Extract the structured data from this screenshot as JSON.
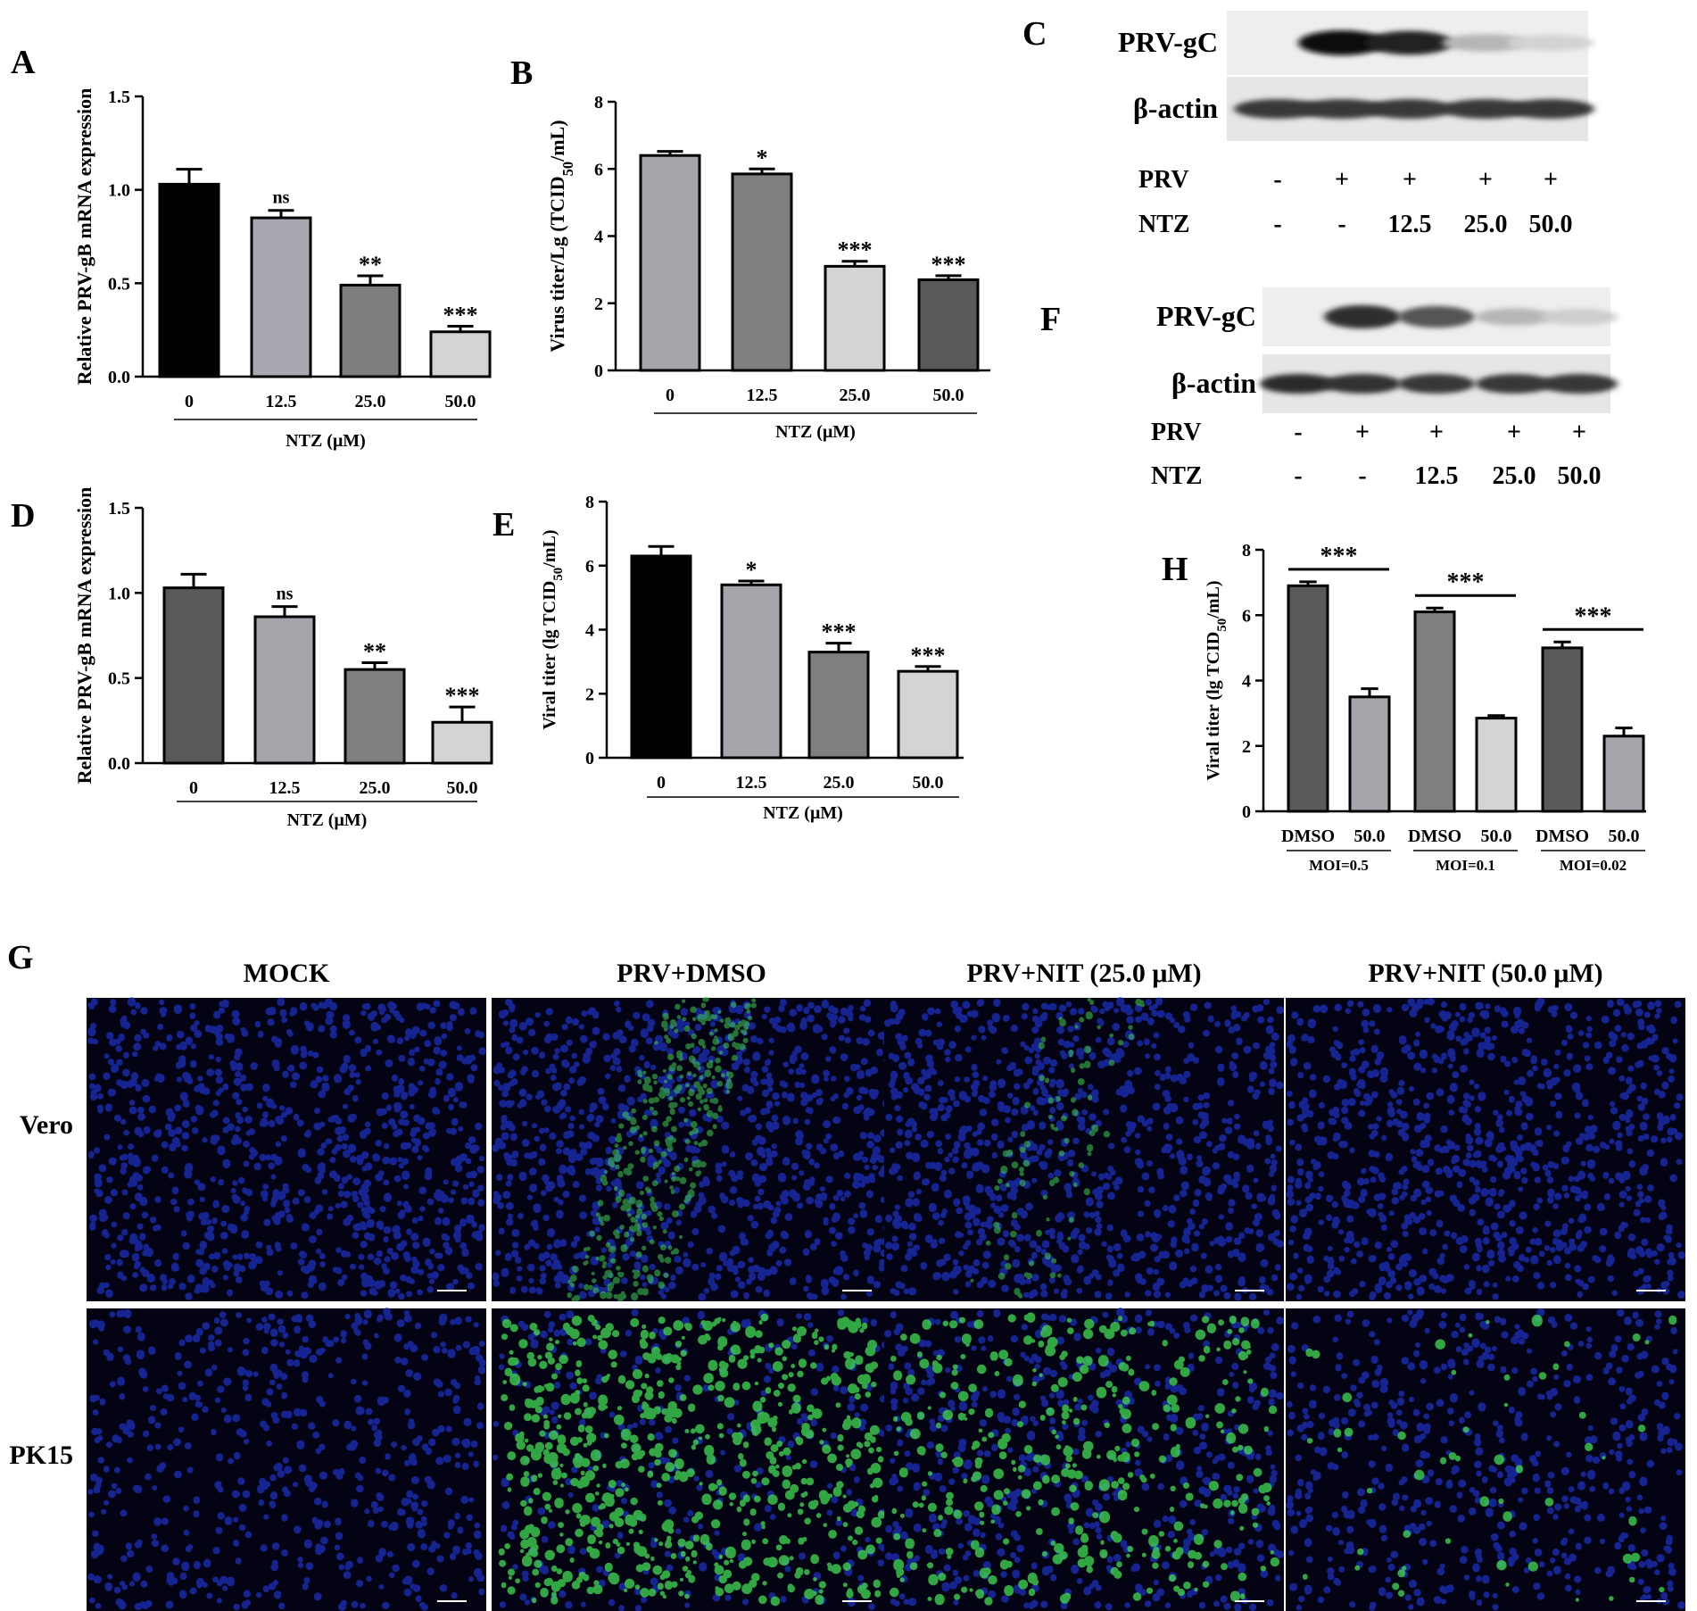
{
  "panel_letters": {
    "A": "A",
    "B": "B",
    "C": "C",
    "D": "D",
    "E": "E",
    "F": "F",
    "G": "G",
    "H": "H"
  },
  "chart_data": [
    {
      "id": "A",
      "type": "bar",
      "categories": [
        "0",
        "12.5",
        "25.0",
        "50.0"
      ],
      "values": [
        1.03,
        0.85,
        0.49,
        0.24
      ],
      "errors": [
        0.08,
        0.04,
        0.05,
        0.03
      ],
      "significance": [
        "",
        "ns",
        "**",
        "***"
      ],
      "colors": [
        "#000000",
        "#a8a8b0",
        "#7e7e7e",
        "#d4d4d4"
      ],
      "xlabel": "NTZ (μM)",
      "ylabel": "Relative PRV-gB mRNA expression",
      "ylim": [
        0,
        1.5
      ],
      "yticks": [
        "0.0",
        "0.5",
        "1.0",
        "1.5"
      ]
    },
    {
      "id": "B",
      "type": "bar",
      "categories": [
        "0",
        "12.5",
        "25.0",
        "50.0"
      ],
      "values": [
        6.4,
        5.85,
        3.1,
        2.7
      ],
      "errors": [
        0.12,
        0.15,
        0.15,
        0.12
      ],
      "significance": [
        "",
        "*",
        "***",
        "***"
      ],
      "colors": [
        "#a5a5ab",
        "#7f7f7f",
        "#d4d4d4",
        "#595959"
      ],
      "xlabel": "NTZ (μM)",
      "ylabel": "Virus titer/Lg (TCID50/mL)",
      "ylim": [
        0,
        8
      ],
      "yticks": [
        "0",
        "2",
        "4",
        "6",
        "8"
      ]
    },
    {
      "id": "D",
      "type": "bar",
      "categories": [
        "0",
        "12.5",
        "25.0",
        "50.0"
      ],
      "values": [
        1.03,
        0.86,
        0.55,
        0.24
      ],
      "errors": [
        0.08,
        0.06,
        0.04,
        0.09
      ],
      "significance": [
        "",
        "ns",
        "**",
        "***"
      ],
      "colors": [
        "#595959",
        "#a5a5ab",
        "#7f7f7f",
        "#d4d4d4"
      ],
      "xlabel": "NTZ (μM)",
      "ylabel": "Relative PRV-gB mRNA expression",
      "ylim": [
        0,
        1.5
      ],
      "yticks": [
        "0.0",
        "0.5",
        "1.0",
        "1.5"
      ]
    },
    {
      "id": "E",
      "type": "bar",
      "categories": [
        "0",
        "12.5",
        "25.0",
        "50.0"
      ],
      "values": [
        6.3,
        5.4,
        3.3,
        2.7
      ],
      "errors": [
        0.3,
        0.12,
        0.28,
        0.15
      ],
      "significance": [
        "",
        "*",
        "***",
        "***"
      ],
      "colors": [
        "#000000",
        "#a5a5ab",
        "#7f7f7f",
        "#d4d4d4"
      ],
      "xlabel": "NTZ (μM)",
      "ylabel": "Viral titer (lg TCID50/mL)",
      "ylim": [
        0,
        8
      ],
      "yticks": [
        "0",
        "2",
        "4",
        "6",
        "8"
      ]
    },
    {
      "id": "H",
      "type": "bar",
      "categories": [
        "DMSO",
        "50.0",
        "DMSO",
        "50.0",
        "DMSO",
        "50.0"
      ],
      "groups": [
        "MOI=0.5",
        "MOI=0.1",
        "MOI=0.02"
      ],
      "values": [
        6.9,
        3.5,
        6.1,
        2.85,
        5.0,
        2.3
      ],
      "errors": [
        0.12,
        0.25,
        0.12,
        0.08,
        0.18,
        0.25
      ],
      "colors": [
        "#595959",
        "#a5a5ab",
        "#7f7f7f",
        "#d4d4d4",
        "#595959",
        "#a5a5ab"
      ],
      "significance_brackets": [
        "***",
        "***",
        "***"
      ],
      "ylabel": "Viral titer (lg TCID50/mL)",
      "ylim": [
        0,
        8
      ],
      "yticks": [
        "0",
        "2",
        "4",
        "6",
        "8"
      ]
    }
  ],
  "blot_C": {
    "rows": [
      "PRV-gC",
      "β-actin"
    ],
    "prv_label": "PRV",
    "ntz_label": "NTZ",
    "prv": [
      "-",
      "+",
      "+",
      "+",
      "+"
    ],
    "ntz": [
      "-",
      "-",
      "12.5",
      "25.0",
      "50.0"
    ],
    "gc_intensity": [
      0.0,
      1.0,
      0.9,
      0.3,
      0.18
    ],
    "actin_intensity": [
      0.85,
      0.85,
      0.85,
      0.85,
      0.85
    ]
  },
  "blot_F": {
    "rows": [
      "PRV-gC",
      "β-actin"
    ],
    "prv_label": "PRV",
    "ntz_label": "NTZ",
    "prv": [
      "-",
      "+",
      "+",
      "+",
      "+"
    ],
    "ntz": [
      "-",
      "-",
      "12.5",
      "25.0",
      "50.0"
    ],
    "gc_intensity": [
      0.0,
      0.85,
      0.7,
      0.3,
      0.2
    ],
    "actin_intensity": [
      0.9,
      0.88,
      0.85,
      0.85,
      0.85
    ]
  },
  "microscopy_G": {
    "columns": [
      "MOCK",
      "PRV+DMSO",
      "PRV+NIT (25.0 μM)",
      "PRV+NIT (50.0 μM)"
    ],
    "rows": [
      "Vero",
      "PK15"
    ],
    "green_signal": [
      [
        0.0,
        0.6,
        0.15,
        0.0
      ],
      [
        0.0,
        1.0,
        0.55,
        0.08
      ]
    ],
    "nucleus_color": "#1a2aa8",
    "stain_color": "#40d050"
  }
}
